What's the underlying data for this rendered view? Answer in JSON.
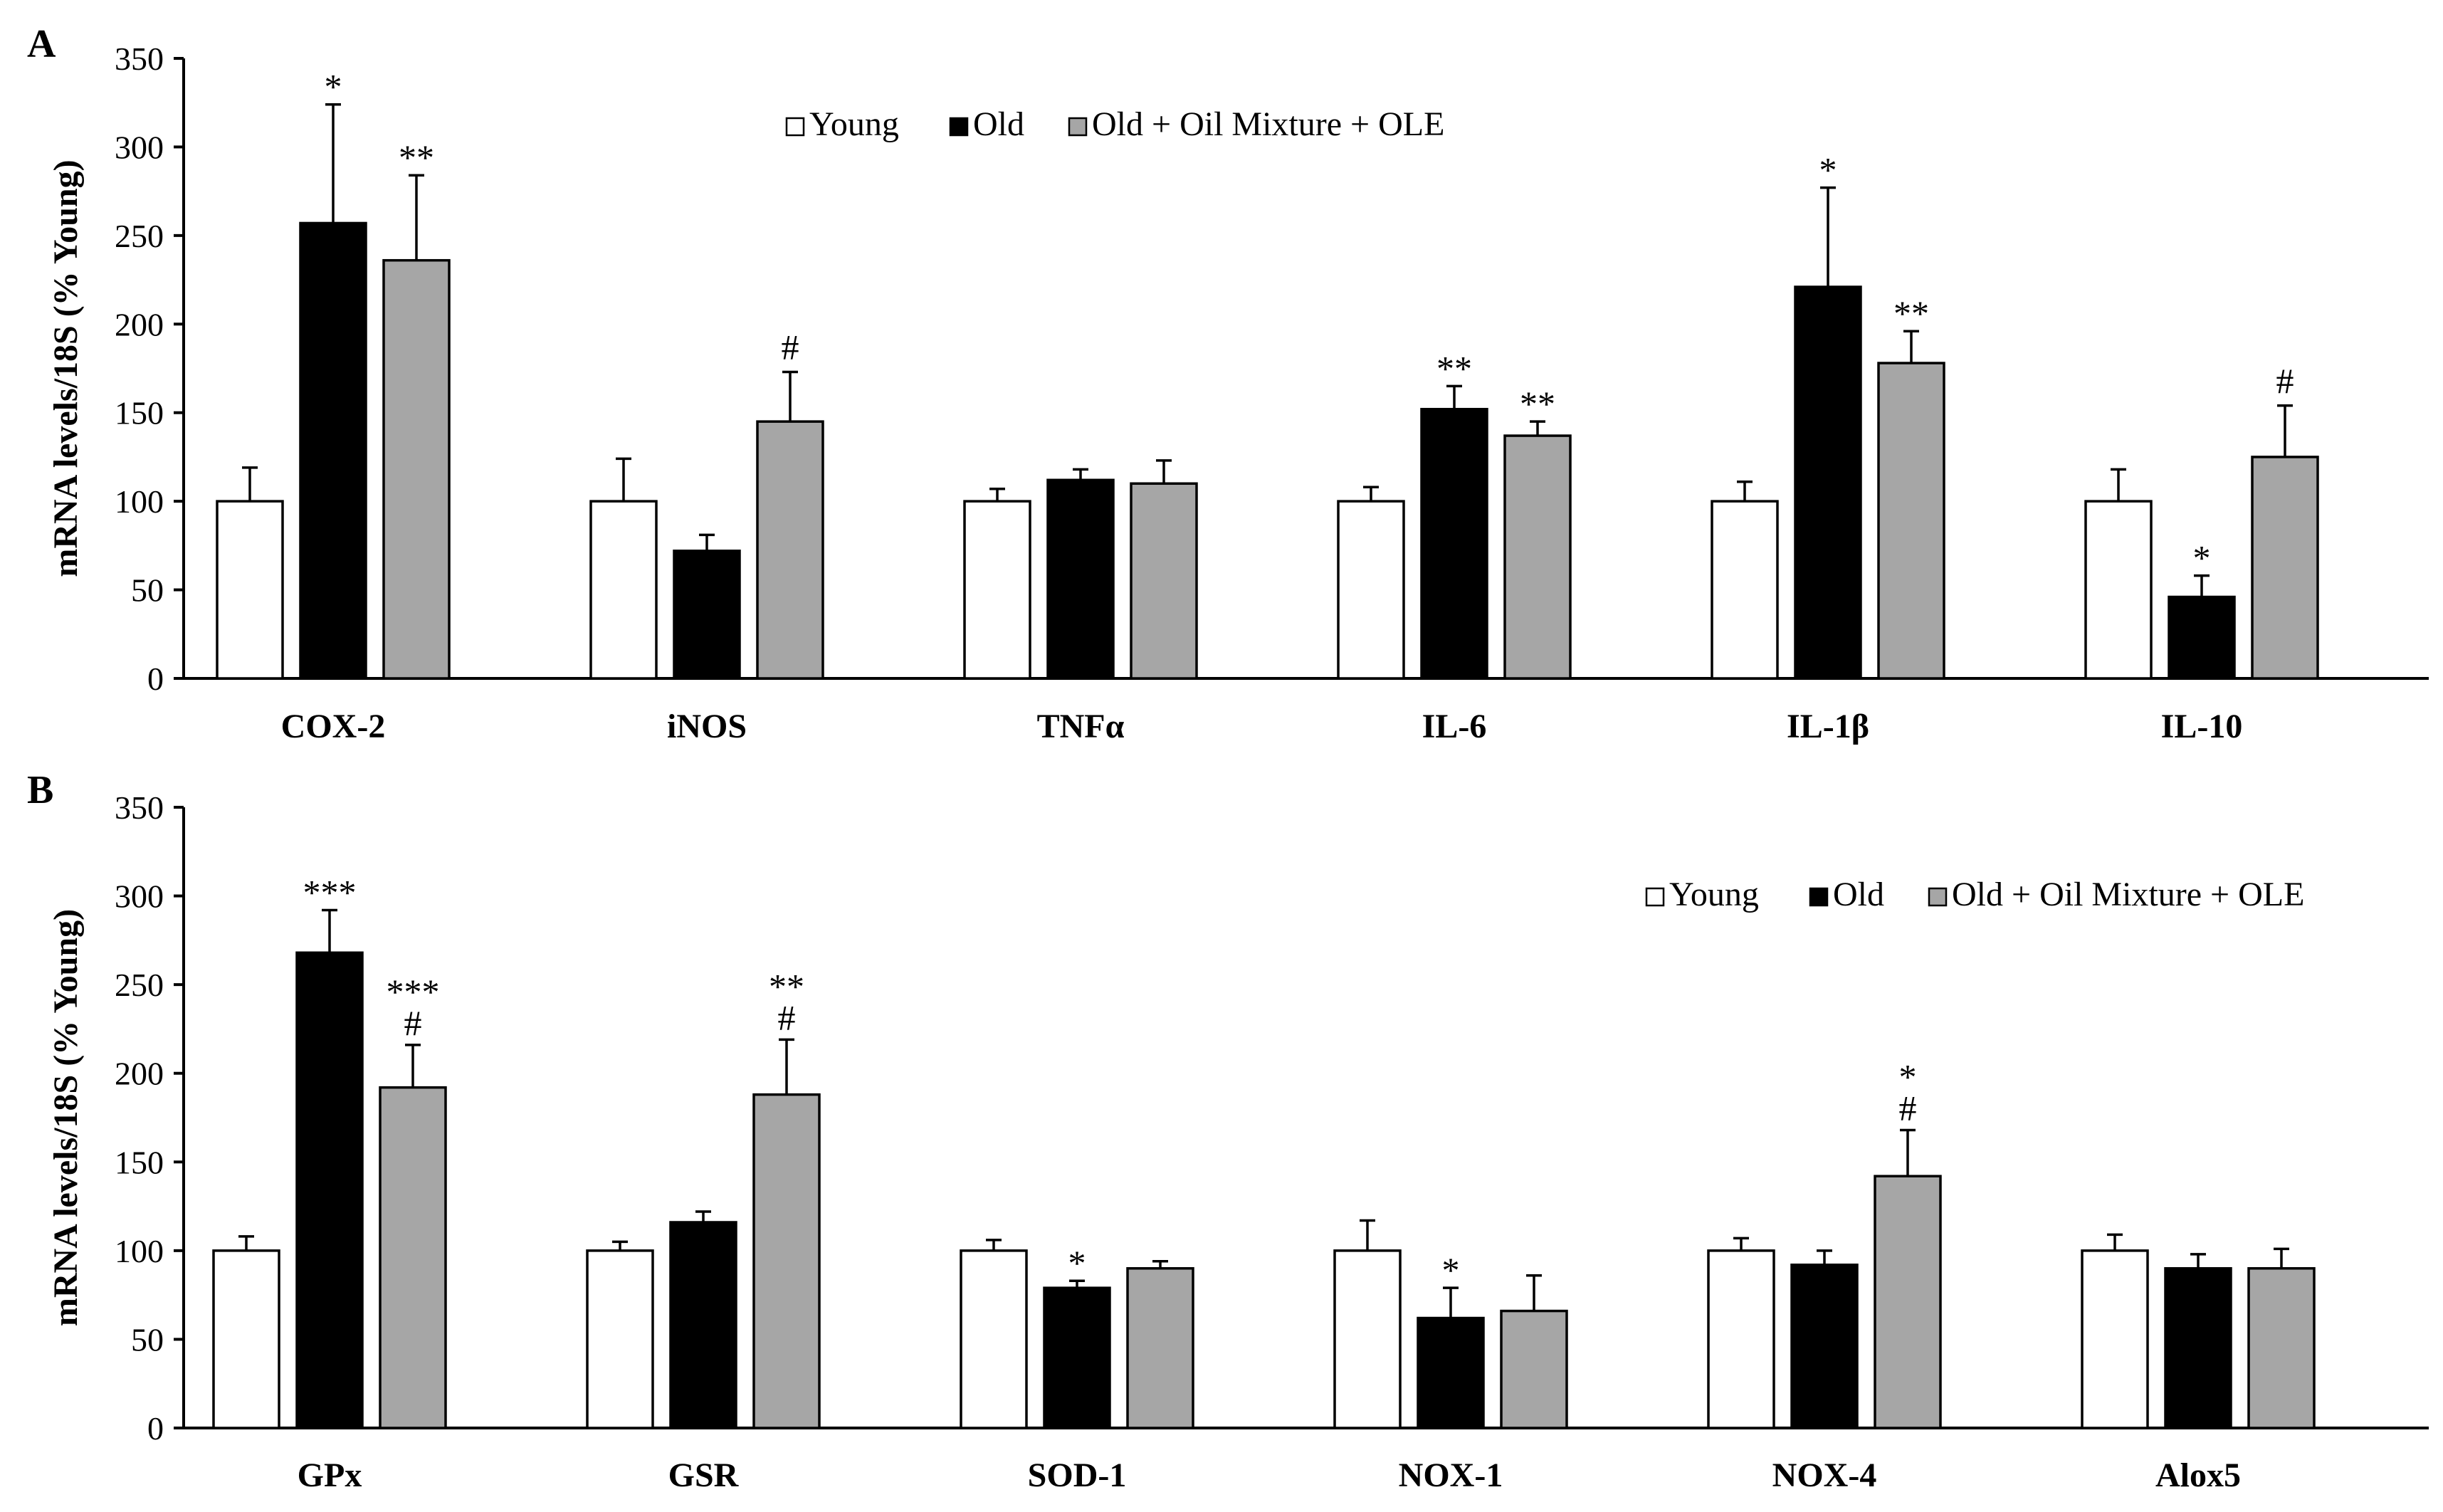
{
  "chart_data": [
    {
      "type": "bar",
      "panel_label": "A",
      "ylabel": "mRNA levels/18S (% Young)",
      "ylim": [
        0,
        350
      ],
      "yticks": [
        "0",
        "50",
        "100",
        "150",
        "200",
        "250",
        "300",
        "350"
      ],
      "legend_position": "top-center",
      "categories": [
        "COX-2",
        "iNOS",
        "TNFα",
        "IL-6",
        "IL-1β",
        "IL-10"
      ],
      "series": [
        {
          "name": "Young",
          "color": "#ffffff",
          "values": [
            100,
            100,
            100,
            100,
            100,
            100
          ],
          "errors": [
            19,
            24,
            7,
            8,
            11,
            18
          ]
        },
        {
          "name": "Old",
          "color": "#000000",
          "values": [
            257,
            72,
            112,
            152,
            221,
            46
          ],
          "errors": [
            67,
            9,
            6,
            13,
            56,
            12
          ]
        },
        {
          "name": "Old + Oil Mixture + OLE",
          "color": "#a6a6a6",
          "values": [
            236,
            145,
            110,
            137,
            178,
            125
          ],
          "errors": [
            48,
            28,
            13,
            8,
            18,
            29
          ]
        }
      ],
      "annotations": [
        {
          "category": "COX-2",
          "series": "Old",
          "text": "*"
        },
        {
          "category": "COX-2",
          "series": "Old + Oil Mixture + OLE",
          "text": "**"
        },
        {
          "category": "iNOS",
          "series": "Old + Oil Mixture + OLE",
          "text": "#"
        },
        {
          "category": "IL-6",
          "series": "Old",
          "text": "**"
        },
        {
          "category": "IL-6",
          "series": "Old + Oil Mixture + OLE",
          "text": "**"
        },
        {
          "category": "IL-1β",
          "series": "Old",
          "text": "*"
        },
        {
          "category": "IL-1β",
          "series": "Old + Oil Mixture + OLE",
          "text": "**"
        },
        {
          "category": "IL-10",
          "series": "Old",
          "text": "*"
        },
        {
          "category": "IL-10",
          "series": "Old + Oil Mixture + OLE",
          "text": "#"
        }
      ]
    },
    {
      "type": "bar",
      "panel_label": "B",
      "ylabel": "mRNA levels/18S (% Young)",
      "ylim": [
        0,
        350
      ],
      "yticks": [
        "0",
        "50",
        "100",
        "150",
        "200",
        "250",
        "300",
        "350"
      ],
      "legend_position": "top-right",
      "categories": [
        "GPx",
        "GSR",
        "SOD-1",
        "NOX-1",
        "NOX-4",
        "Alox5"
      ],
      "series": [
        {
          "name": "Young",
          "color": "#ffffff",
          "values": [
            100,
            100,
            100,
            100,
            100,
            100
          ],
          "errors": [
            8,
            5,
            6,
            17,
            7,
            9
          ]
        },
        {
          "name": "Old",
          "color": "#000000",
          "values": [
            268,
            116,
            79,
            62,
            92,
            90
          ],
          "errors": [
            24,
            6,
            4,
            17,
            8,
            8
          ]
        },
        {
          "name": "Old + Oil Mixture + OLE",
          "color": "#a6a6a6",
          "values": [
            192,
            188,
            90,
            66,
            142,
            90
          ],
          "errors": [
            24,
            31,
            4,
            20,
            26,
            11
          ]
        }
      ],
      "annotations": [
        {
          "category": "GPx",
          "series": "Old",
          "text": "***"
        },
        {
          "category": "GPx",
          "series": "Old + Oil Mixture + OLE",
          "text": "***",
          "line2": "#"
        },
        {
          "category": "GSR",
          "series": "Old + Oil Mixture + OLE",
          "text": "**",
          "line2": "#"
        },
        {
          "category": "SOD-1",
          "series": "Old",
          "text": "*"
        },
        {
          "category": "NOX-1",
          "series": "Old",
          "text": "*"
        },
        {
          "category": "NOX-4",
          "series": "Old + Oil Mixture + OLE",
          "text": "*",
          "line2": "#"
        }
      ]
    }
  ]
}
